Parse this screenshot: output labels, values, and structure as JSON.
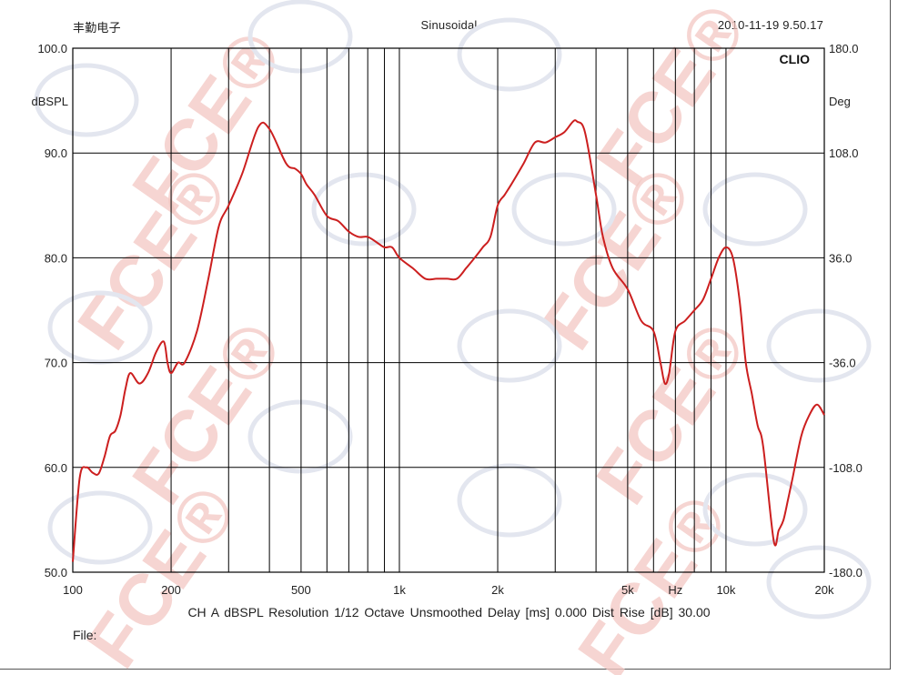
{
  "header": {
    "left": "丰勤电子",
    "center": "Sinusoidal",
    "right": "2010-11-19 9.50.17"
  },
  "status_line": "CH A   dBSPL   Resolution 1/12 Octave   Unsmoothed   Delay [ms] 0.000   Dist Rise [dB] 30.00",
  "file_label": "File:",
  "watermark_text": "FCE®",
  "colors": {
    "curve": "#cc1f1f",
    "grid": "#000000",
    "watermark": "#f3c8c3"
  },
  "chart_data": {
    "type": "line",
    "brand": "CLIO",
    "xscale": "log",
    "xlim": [
      100,
      20000
    ],
    "xticks": [
      {
        "v": 100,
        "label": "100"
      },
      {
        "v": 200,
        "label": "200"
      },
      {
        "v": 500,
        "label": "500"
      },
      {
        "v": 1000,
        "label": "1k"
      },
      {
        "v": 2000,
        "label": "2k"
      },
      {
        "v": 5000,
        "label": "5k"
      },
      {
        "v": 7000,
        "label": "Hz"
      },
      {
        "v": 10000,
        "label": "10k"
      },
      {
        "v": 20000,
        "label": "20k"
      }
    ],
    "ylabel_left": "dBSPL",
    "ylim_left": [
      50,
      100
    ],
    "yticks_left": [
      "50.0",
      "60.0",
      "70.0",
      "80.0",
      "90.0",
      "100.0"
    ],
    "ylabel_right": "Deg",
    "ylim_right": [
      -180,
      180
    ],
    "yticks_right": [
      "-180.0",
      "-108.0",
      "-36.0",
      "36.0",
      "108.0",
      "180.0"
    ],
    "grid": true,
    "series": [
      {
        "x": [
          100,
          105,
          110,
          115,
          120,
          125,
          130,
          135,
          140,
          145,
          150,
          160,
          170,
          180,
          190,
          195,
          200,
          210,
          220,
          240,
          260,
          280,
          300,
          330,
          370,
          400,
          450,
          480,
          500,
          520,
          550,
          600,
          650,
          700,
          750,
          800,
          850,
          900,
          950,
          1000,
          1100,
          1200,
          1300,
          1400,
          1500,
          1600,
          1700,
          1800,
          1900,
          2000,
          2100,
          2200,
          2400,
          2600,
          2800,
          3000,
          3200,
          3400,
          3500,
          3700,
          4000,
          4200,
          4500,
          5000,
          5500,
          6000,
          6300,
          6500,
          6700,
          7000,
          7500,
          8000,
          8500,
          9000,
          9500,
          10000,
          10500,
          11000,
          11500,
          12000,
          12500,
          13000,
          14000,
          14500,
          15000,
          15500,
          16000,
          17000,
          18000,
          19000,
          20000
        ],
        "y": [
          51,
          59,
          60,
          59.5,
          59.4,
          61,
          63,
          63.5,
          65,
          67.5,
          69,
          68,
          69,
          71,
          72,
          70,
          69,
          70,
          70,
          73,
          78,
          83,
          85,
          88,
          92.5,
          92.3,
          89,
          88.5,
          88,
          87,
          86,
          84,
          83.5,
          82.5,
          82,
          82,
          81.5,
          81,
          81,
          80,
          79,
          78,
          78,
          78,
          78,
          79,
          80,
          81,
          82,
          85,
          86,
          87,
          89,
          91,
          91,
          91.5,
          92,
          93,
          93,
          92,
          86,
          82,
          79,
          77,
          74,
          73,
          70,
          68,
          69,
          73,
          74,
          75,
          76,
          78,
          80,
          81,
          80,
          76,
          70,
          67,
          64,
          62,
          53,
          54,
          55,
          57,
          59,
          63,
          65,
          66,
          65
        ]
      }
    ]
  }
}
